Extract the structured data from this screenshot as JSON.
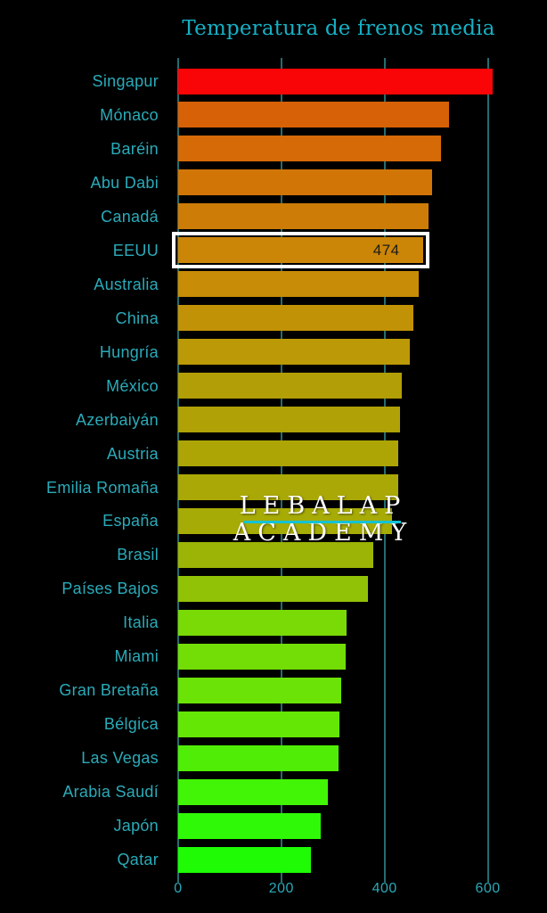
{
  "title": "Temperatura de frenos media",
  "watermark": {
    "line1": "LEBALAP",
    "line2": "ACADEMY"
  },
  "chart_data": {
    "type": "bar",
    "orientation": "horizontal",
    "title": "Temperatura de frenos media",
    "xlabel": "",
    "ylabel": "",
    "xlim": [
      0,
      630
    ],
    "xticks": [
      0,
      200,
      400,
      600
    ],
    "grid": "vertical, drawn under bars",
    "legend": "none",
    "categories": [
      "Singapur",
      "Mónaco",
      "Baréin",
      "Abu Dabi",
      "Canadá",
      "EEUU",
      "Australia",
      "China",
      "Hungría",
      "México",
      "Azerbaiyán",
      "Austria",
      "Emilia Romaña",
      "España",
      "Brasil",
      "Países Bajos",
      "Italia",
      "Miami",
      "Gran Bretaña",
      "Bélgica",
      "Las Vegas",
      "Arabia Saudí",
      "Japón",
      "Qatar"
    ],
    "values": [
      610,
      525,
      510,
      492,
      485,
      474,
      466,
      455,
      448,
      433,
      429,
      427,
      426,
      414,
      378,
      367,
      326,
      324,
      315,
      312,
      310,
      290,
      276,
      258
    ],
    "bars": [
      {
        "label": "Singapur",
        "value": 610,
        "color": "#fa0507"
      },
      {
        "label": "Mónaco",
        "value": 525,
        "color": "#d76107"
      },
      {
        "label": "Baréin",
        "value": 510,
        "color": "#d66a07"
      },
      {
        "label": "Abu Dabi",
        "value": 492,
        "color": "#d17507"
      },
      {
        "label": "Canadá",
        "value": 485,
        "color": "#cd7d07"
      },
      {
        "label": "EEUU",
        "value": 474,
        "color": "#cb8507",
        "highlighted": true,
        "value_label": "474"
      },
      {
        "label": "Australia",
        "value": 466,
        "color": "#c98c06"
      },
      {
        "label": "China",
        "value": 455,
        "color": "#c29206"
      },
      {
        "label": "Hungría",
        "value": 448,
        "color": "#bc9906"
      },
      {
        "label": "México",
        "value": 433,
        "color": "#b29e06"
      },
      {
        "label": "Azerbaiyán",
        "value": 429,
        "color": "#b0a206"
      },
      {
        "label": "Austria",
        "value": 427,
        "color": "#ada506"
      },
      {
        "label": "Emilia Romaña",
        "value": 426,
        "color": "#aaa806"
      },
      {
        "label": "España",
        "value": 414,
        "color": "#a7ab06"
      },
      {
        "label": "Brasil",
        "value": 378,
        "color": "#9cb406"
      },
      {
        "label": "Países Bajos",
        "value": 367,
        "color": "#92c206"
      },
      {
        "label": "Italia",
        "value": 326,
        "color": "#79da06"
      },
      {
        "label": "Miami",
        "value": 324,
        "color": "#72de06"
      },
      {
        "label": "Gran Bretaña",
        "value": 315,
        "color": "#6ce306"
      },
      {
        "label": "Bélgica",
        "value": 312,
        "color": "#65e706"
      },
      {
        "label": "Las Vegas",
        "value": 310,
        "color": "#50ee06"
      },
      {
        "label": "Arabia Saudí",
        "value": 290,
        "color": "#42f405"
      },
      {
        "label": "Japón",
        "value": 276,
        "color": "#2ff906"
      },
      {
        "label": "Qatar",
        "value": 258,
        "color": "#1efb05"
      }
    ],
    "highlight": {
      "label": "EEUU",
      "value_label": "474",
      "frame_color": "#ffffff"
    },
    "colors": {
      "background": "#000000",
      "title": "#15b0c4",
      "category_label": "#2aabb9",
      "tick_label": "#2aa9b8",
      "gridline": "#256c6f",
      "watermark_text": "#ffffff",
      "watermark_line": "#12c3d6",
      "highlight_value_text": "#1b1b1b"
    }
  }
}
